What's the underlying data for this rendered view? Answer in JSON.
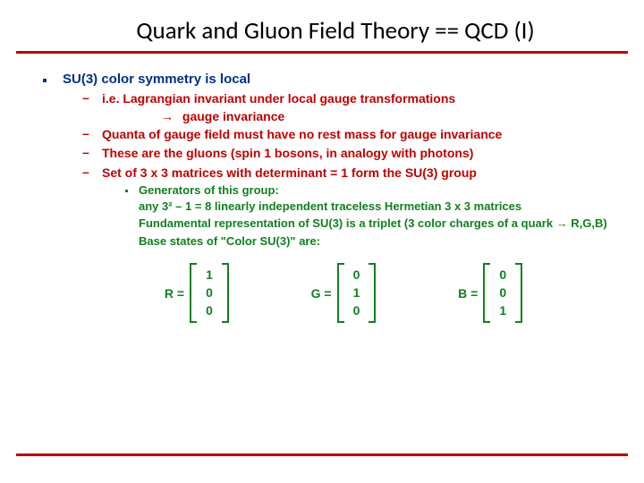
{
  "title": "Quark and Gluon Field Theory == QCD (I)",
  "colors": {
    "title": "#000000",
    "underline": "#c00000",
    "level1": "#003087",
    "level2": "#c00000",
    "level3": "#108020",
    "background": "#ffffff"
  },
  "fonts": {
    "title_family": "Calibri",
    "title_size_pt": 20,
    "body_family": "Arial",
    "level1_size_pt": 11,
    "level2_size_pt": 10.5,
    "level3_size_pt": 10,
    "weight": "bold"
  },
  "main_bullet": "SU(3) color symmetry is local",
  "sub_bullets": [
    "i.e. Lagrangian invariant under local gauge transformations",
    "Quanta of gauge field must have no rest mass for gauge invariance",
    "These are the gluons (spin 1 bosons, in analogy with photons)",
    "Set of 3 x 3 matrices with determinant = 1 form the SU(3) group"
  ],
  "arrow_line": "gauge invariance",
  "sub2_bullet": "Generators of this group:",
  "green_lines": [
    "any 3² – 1 = 8 linearly independent traceless Hermetian 3 x 3 matrices",
    "Fundamental representation of SU(3) is a triplet (3 color charges of a quark → R,G,B)",
    "Base states of \"Color SU(3)\" are:"
  ],
  "matrices": [
    {
      "label": "R =",
      "values": [
        "1",
        "0",
        "0"
      ]
    },
    {
      "label": "G =",
      "values": [
        "0",
        "1",
        "0"
      ]
    },
    {
      "label": "B =",
      "values": [
        "0",
        "0",
        "1"
      ]
    }
  ]
}
